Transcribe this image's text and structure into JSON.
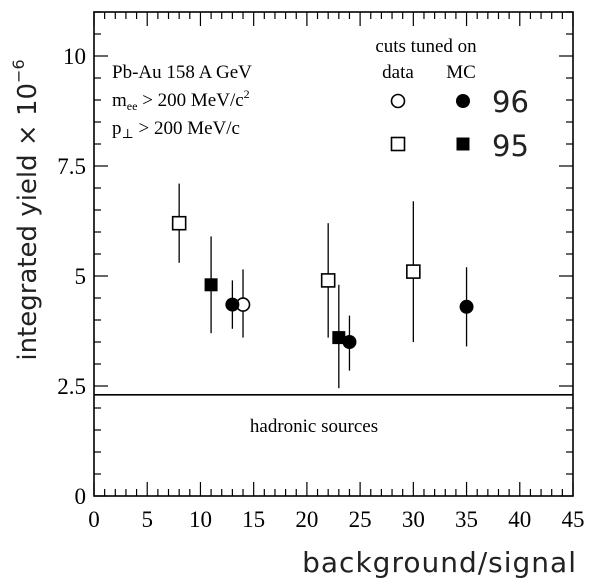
{
  "chart_data": {
    "type": "scatter",
    "xlabel": "background/signal",
    "ylabel": "integrated yield × 10",
    "ylabel_exponent": "−6",
    "xlim": [
      0,
      45
    ],
    "ylim": [
      0,
      11
    ],
    "x_ticks": [
      0,
      5,
      10,
      15,
      20,
      25,
      30,
      35,
      40,
      45
    ],
    "x_tick_labels": [
      "0",
      "5",
      "10",
      "15",
      "20",
      "25",
      "30",
      "35",
      "40",
      "45"
    ],
    "y_ticks": [
      0,
      2.5,
      5,
      7.5,
      10
    ],
    "y_tick_labels": [
      "0",
      "2.5",
      "5",
      "7.5",
      "10"
    ],
    "grid": false,
    "info_text": {
      "line1": "Pb-Au 158 A GeV",
      "line2_main": "m",
      "line2_sub": "ee",
      "line2_rest": " > 200 MeV/c",
      "line2_sup": "2",
      "line3_main": "p",
      "line3_sub": "⊥",
      "line3_rest": " > 200 MeV/c"
    },
    "legend": {
      "placement": "top-right",
      "title": "cuts tuned on",
      "col_data": "data",
      "col_mc": "MC",
      "row_96": "96",
      "row_95": "95"
    },
    "reference_line": {
      "y": 2.3,
      "label": "hadronic sources"
    },
    "series": [
      {
        "name": "96 data",
        "marker": "open-circle",
        "points": [
          {
            "x": 14.0,
            "y": 4.35,
            "ylo": 3.6,
            "yhi": 5.15
          }
        ]
      },
      {
        "name": "96 MC",
        "marker": "filled-circle",
        "points": [
          {
            "x": 13.0,
            "y": 4.35,
            "ylo": 3.8,
            "yhi": 4.9
          },
          {
            "x": 24.0,
            "y": 3.5,
            "ylo": 2.85,
            "yhi": 4.1
          },
          {
            "x": 35.0,
            "y": 4.3,
            "ylo": 3.4,
            "yhi": 5.2
          }
        ]
      },
      {
        "name": "95 data",
        "marker": "open-square",
        "points": [
          {
            "x": 8.0,
            "y": 6.2,
            "ylo": 5.3,
            "yhi": 7.1
          },
          {
            "x": 22.0,
            "y": 4.9,
            "ylo": 3.6,
            "yhi": 6.2
          },
          {
            "x": 30.0,
            "y": 5.1,
            "ylo": 3.5,
            "yhi": 6.7
          }
        ]
      },
      {
        "name": "95 MC",
        "marker": "filled-square",
        "points": [
          {
            "x": 11.0,
            "y": 4.8,
            "ylo": 3.7,
            "yhi": 5.9
          },
          {
            "x": 23.0,
            "y": 3.6,
            "ylo": 2.45,
            "yhi": 4.8
          }
        ]
      }
    ]
  }
}
